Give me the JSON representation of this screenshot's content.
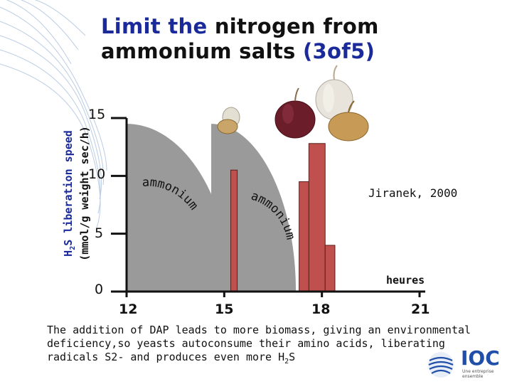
{
  "slide": {
    "title_blue1": "Limit the",
    "title_black1": " nitrogen from",
    "title_black2": "ammonium salts",
    "title_blue2": " (3of5)",
    "credit": "Jiranek, 2000",
    "x_unit": "heures",
    "caption_main": "The addition of DAP leads to more biomass, giving an environmental deficiency,so yeasts autoconsume their amino acids, liberating radicals S2- and produces even more H",
    "caption_sub": "2",
    "caption_end": "S",
    "logo_text": "IOC",
    "logo_tagline": "Une entreprise ensemble"
  },
  "chart_data": {
    "type": "bar",
    "ylabel_blue_pre": "H",
    "ylabel_sub": "2",
    "ylabel_blue_post": "S liberation speed",
    "ylabel_line2": "(mmol/g weight sec/h)",
    "y_ticks": [
      "15",
      "10",
      "5",
      "0"
    ],
    "x_ticks": [
      "12",
      "15",
      "18",
      "21"
    ],
    "xlim": [
      12,
      21
    ],
    "ylim": [
      0,
      15
    ],
    "bars": [
      {
        "x": 15.2,
        "width": 0.2,
        "value": 10.5,
        "color": "#c0504d"
      },
      {
        "x": 17.3,
        "width": 0.3,
        "value": 9.5,
        "color": "#c0504d"
      },
      {
        "x": 17.6,
        "width": 0.5,
        "value": 12.8,
        "color": "#c0504d"
      },
      {
        "x": 18.1,
        "width": 0.3,
        "value": 4.0,
        "color": "#c0504d"
      }
    ],
    "curves": [
      {
        "label": "ammonium",
        "x_start": 12.0,
        "x_end": 15.2,
        "peak": 14.5,
        "color": "#9a9a9a"
      },
      {
        "label": "ammonium",
        "x_start": 14.6,
        "x_end": 17.2,
        "peak": 14.5,
        "color": "#9a9a9a"
      }
    ]
  }
}
